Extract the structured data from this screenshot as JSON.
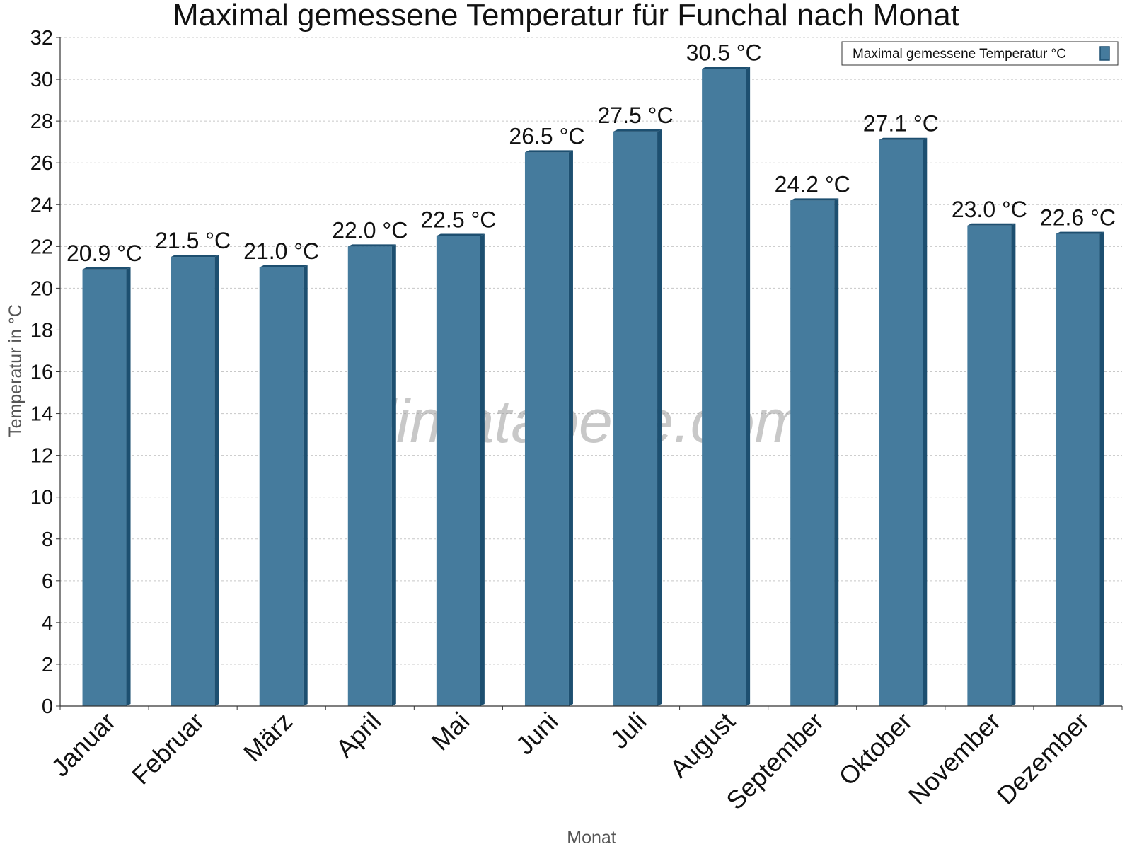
{
  "chart_data": {
    "type": "bar",
    "title": "Maximal gemessene Temperatur für Funchal nach Monat",
    "xlabel": "Monat",
    "ylabel": "Temperatur in °C",
    "categories": [
      "Januar",
      "Februar",
      "März",
      "April",
      "Mai",
      "Juni",
      "Juli",
      "August",
      "September",
      "Oktober",
      "November",
      "Dezember"
    ],
    "series": [
      {
        "name": "Maximal gemessene Temperatur °C",
        "values": [
          20.9,
          21.5,
          21.0,
          22.0,
          22.5,
          26.5,
          27.5,
          30.5,
          24.2,
          27.1,
          23.0,
          22.6
        ],
        "color": "#457b9d"
      }
    ],
    "value_suffix": " °C",
    "ylim": [
      0,
      32
    ],
    "ytick_step": 2,
    "grid": true,
    "legend_position": "top-right",
    "watermark": "klimatabelle.com"
  },
  "colors": {
    "bar": "#457b9d",
    "bar_side": "#1d4f70",
    "bar_top": "#1d4f70",
    "grid": "#c8c8c8"
  }
}
